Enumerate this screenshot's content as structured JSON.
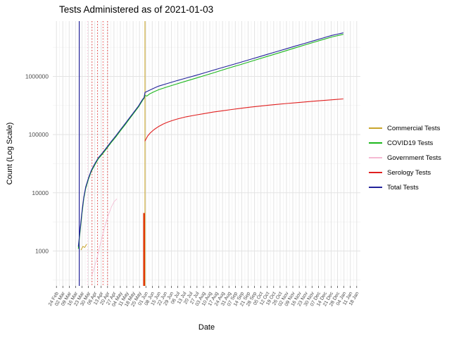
{
  "title": "Tests Administered as of 2021-01-03",
  "chart_data": {
    "type": "line",
    "title": "Tests Administered as of 2021-01-03",
    "xlabel": "Date",
    "ylabel": "Count (Log Scale)",
    "y_scale": "log10",
    "grid": true,
    "legend_position": "right",
    "y_ticks": [
      1000,
      10000,
      100000,
      1000000
    ],
    "y_tick_labels": [
      "1000",
      "10000",
      "100000",
      "1000000"
    ],
    "x_tick_interval_days": 7,
    "x_tick_labels": [
      "24 Feb",
      "02 Mar",
      "09 Mar",
      "16 Mar",
      "23 Mar",
      "30 Mar",
      "06 Apr",
      "13 Apr",
      "20 Apr",
      "27 Apr",
      "04 May",
      "11 May",
      "18 May",
      "25 May",
      "01 Jun",
      "08 Jun",
      "15 Jun",
      "22 Jun",
      "29 Jun",
      "06 Jul",
      "13 Jul",
      "20 Jul",
      "27 Jul",
      "03 Aug",
      "10 Aug",
      "17 Aug",
      "24 Aug",
      "31 Aug",
      "07 Sep",
      "14 Sep",
      "21 Sep",
      "28 Sep",
      "05 Oct",
      "12 Oct",
      "19 Oct",
      "26 Oct",
      "02 Nov",
      "09 Nov",
      "16 Nov",
      "23 Nov",
      "30 Nov",
      "07 Dec",
      "14 Dec",
      "21 Dec",
      "28 Dec",
      "04 Jan",
      "11 Jan",
      "18 Jan"
    ],
    "x_range_days": [
      -4,
      333
    ],
    "y_log_range": [
      2.4,
      6.95
    ],
    "series": [
      {
        "name": "Commercial Tests",
        "color": "#c9a52c",
        "width": 1,
        "points": [
          [
            27,
            1050
          ],
          [
            29,
            1200
          ],
          [
            31,
            1150
          ],
          [
            33,
            1300
          ]
        ]
      },
      {
        "name": "COVID19 Tests",
        "color": "#1db71d",
        "width": 1.1,
        "points": [
          [
            24,
            1100
          ],
          [
            26,
            2200
          ],
          [
            28,
            4400
          ],
          [
            30,
            8000
          ],
          [
            32,
            11800
          ],
          [
            35,
            17000
          ],
          [
            38,
            23000
          ],
          [
            42,
            30000
          ],
          [
            46,
            38500
          ],
          [
            50,
            45500
          ],
          [
            55,
            57500
          ],
          [
            60,
            73000
          ],
          [
            65,
            91000
          ],
          [
            70,
            116000
          ],
          [
            75,
            146000
          ],
          [
            80,
            186000
          ],
          [
            85,
            236000
          ],
          [
            90,
            300000
          ],
          [
            94,
            380000
          ],
          [
            96,
            420000
          ],
          [
            97,
            470000
          ],
          [
            99,
            460000
          ],
          [
            102,
            500000
          ],
          [
            107,
            545000
          ],
          [
            112,
            590000
          ],
          [
            122,
            665000
          ],
          [
            132,
            745000
          ],
          [
            142,
            830000
          ],
          [
            152,
            925000
          ],
          [
            162,
            1030000
          ],
          [
            172,
            1150000
          ],
          [
            182,
            1290000
          ],
          [
            192,
            1440000
          ],
          [
            202,
            1600000
          ],
          [
            212,
            1790000
          ],
          [
            222,
            2000000
          ],
          [
            232,
            2230000
          ],
          [
            242,
            2490000
          ],
          [
            252,
            2780000
          ],
          [
            262,
            3110000
          ],
          [
            272,
            3470000
          ],
          [
            282,
            3860000
          ],
          [
            292,
            4300000
          ],
          [
            302,
            4780000
          ],
          [
            308,
            5020000
          ],
          [
            314,
            5280000
          ]
        ]
      },
      {
        "name": "Government Tests",
        "color": "#f5b9d3",
        "width": 0.8,
        "points": [
          [
            39,
            390
          ],
          [
            44,
            700
          ],
          [
            48,
            1300
          ],
          [
            52,
            2300
          ],
          [
            56,
            3800
          ],
          [
            60,
            5600
          ],
          [
            63,
            7000
          ],
          [
            66,
            7800
          ]
        ]
      },
      {
        "name": "Serology Tests",
        "color": "#e02020",
        "width": 1.1,
        "points": [
          [
            97,
            78000
          ],
          [
            100,
            95000
          ],
          [
            103,
            108000
          ],
          [
            107,
            122000
          ],
          [
            112,
            138000
          ],
          [
            117,
            152000
          ],
          [
            122,
            164000
          ],
          [
            127,
            175000
          ],
          [
            132,
            185000
          ],
          [
            142,
            202000
          ],
          [
            152,
            216000
          ],
          [
            162,
            230000
          ],
          [
            172,
            244000
          ],
          [
            182,
            257000
          ],
          [
            192,
            270000
          ],
          [
            202,
            283000
          ],
          [
            212,
            296000
          ],
          [
            222,
            308000
          ],
          [
            232,
            320000
          ],
          [
            242,
            331000
          ],
          [
            252,
            342000
          ],
          [
            262,
            353000
          ],
          [
            272,
            364000
          ],
          [
            282,
            375000
          ],
          [
            292,
            386000
          ],
          [
            302,
            397000
          ],
          [
            308,
            403000
          ],
          [
            314,
            410000
          ]
        ]
      },
      {
        "name": "Total Tests",
        "color": "#23239b",
        "width": 1.1,
        "points": [
          [
            24,
            1200
          ],
          [
            26,
            2400
          ],
          [
            28,
            4800
          ],
          [
            30,
            8500
          ],
          [
            32,
            12500
          ],
          [
            35,
            17800
          ],
          [
            38,
            24000
          ],
          [
            42,
            31500
          ],
          [
            46,
            40000
          ],
          [
            50,
            47500
          ],
          [
            55,
            60000
          ],
          [
            60,
            76000
          ],
          [
            65,
            95000
          ],
          [
            70,
            121000
          ],
          [
            75,
            152000
          ],
          [
            80,
            193000
          ],
          [
            85,
            245000
          ],
          [
            90,
            312000
          ],
          [
            94,
            395000
          ],
          [
            96,
            435000
          ],
          [
            97,
            530000
          ],
          [
            102,
            580000
          ],
          [
            107,
            630000
          ],
          [
            112,
            680000
          ],
          [
            122,
            760000
          ],
          [
            132,
            845000
          ],
          [
            142,
            935000
          ],
          [
            152,
            1035000
          ],
          [
            162,
            1150000
          ],
          [
            172,
            1280000
          ],
          [
            182,
            1420000
          ],
          [
            192,
            1580000
          ],
          [
            202,
            1750000
          ],
          [
            212,
            1950000
          ],
          [
            222,
            2170000
          ],
          [
            232,
            2420000
          ],
          [
            242,
            2690000
          ],
          [
            252,
            2990000
          ],
          [
            262,
            3330000
          ],
          [
            272,
            3700000
          ],
          [
            282,
            4110000
          ],
          [
            292,
            4570000
          ],
          [
            302,
            5070000
          ],
          [
            308,
            5330000
          ],
          [
            314,
            5600000
          ]
        ]
      }
    ],
    "vlines": [
      {
        "day": 25,
        "color": "#23239b",
        "style": "solid",
        "width": 1.2
      },
      {
        "day": 34,
        "color": "#f5b9d3",
        "style": "dotted",
        "width": 0.9
      },
      {
        "day": 39,
        "color": "#e02020",
        "style": "dotted",
        "width": 0.9
      },
      {
        "day": 45,
        "color": "#e02020",
        "style": "dotted",
        "width": 0.9
      },
      {
        "day": 51,
        "color": "#e02020",
        "style": "dotted",
        "width": 0.9
      },
      {
        "day": 56,
        "color": "#e02020",
        "style": "dotted",
        "width": 0.9
      },
      {
        "day": 97,
        "color": "#c9a52c",
        "style": "solid",
        "width": 1.1
      }
    ],
    "partial_vlines": [
      {
        "day": 96,
        "color": "#e03000",
        "width": 2.4,
        "to_value": 4500
      }
    ],
    "colors": {
      "grid_major": "#e3e3e3",
      "grid_minor": "#f0f0f0",
      "axis_text": "#4d4d4d",
      "tick_mark": "#333333"
    }
  }
}
